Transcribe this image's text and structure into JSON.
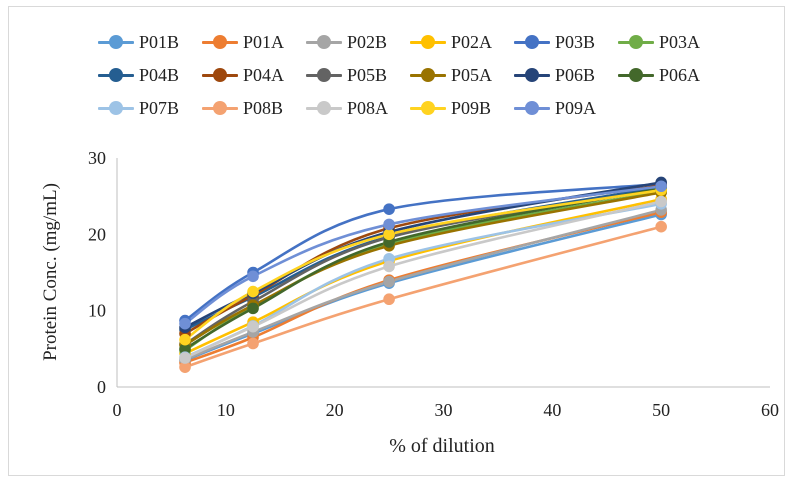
{
  "chart_data": {
    "type": "line",
    "title": "",
    "xlabel": "% of dilution",
    "ylabel": "Protein Conc. (mg/mL)",
    "xlim": [
      0,
      60
    ],
    "ylim": [
      0,
      30
    ],
    "xticks": [
      0,
      10,
      20,
      30,
      40,
      50,
      60
    ],
    "yticks": [
      0,
      10,
      20,
      30
    ],
    "grid": false,
    "legend_position": "top",
    "line_style": "smooth",
    "x": [
      6.25,
      12.5,
      25,
      50
    ],
    "series": [
      {
        "name": "P01B",
        "color": "#5b9bd5",
        "values": [
          3.5,
          7.0,
          13.6,
          22.6
        ]
      },
      {
        "name": "P01A",
        "color": "#ed7d31",
        "values": [
          3.2,
          6.5,
          14.0,
          22.9
        ]
      },
      {
        "name": "P02B",
        "color": "#a5a5a5",
        "values": [
          3.6,
          7.2,
          13.8,
          23.2
        ]
      },
      {
        "name": "P02A",
        "color": "#ffc000",
        "values": [
          4.4,
          8.5,
          16.5,
          24.6
        ]
      },
      {
        "name": "P03B",
        "color": "#4472c4",
        "values": [
          8.7,
          15.0,
          23.3,
          26.6
        ]
      },
      {
        "name": "P03A",
        "color": "#70ad47",
        "values": [
          4.8,
          10.5,
          18.8,
          25.6
        ]
      },
      {
        "name": "P04B",
        "color": "#255e91",
        "values": [
          7.5,
          11.8,
          19.7,
          26.2
        ]
      },
      {
        "name": "P04A",
        "color": "#9e480e",
        "values": [
          7.0,
          12.0,
          20.8,
          26.4
        ]
      },
      {
        "name": "P05B",
        "color": "#636363",
        "values": [
          5.6,
          11.2,
          19.6,
          25.9
        ]
      },
      {
        "name": "P05A",
        "color": "#997300",
        "values": [
          5.5,
          10.7,
          18.5,
          25.5
        ]
      },
      {
        "name": "P06B",
        "color": "#264478",
        "values": [
          7.8,
          12.3,
          20.3,
          26.8
        ]
      },
      {
        "name": "P06A",
        "color": "#43682b",
        "values": [
          5.0,
          10.3,
          19.0,
          26.0
        ]
      },
      {
        "name": "P07B",
        "color": "#9dc3e6",
        "values": [
          3.9,
          8.0,
          16.8,
          24.0
        ]
      },
      {
        "name": "P08B",
        "color": "#f4a271",
        "values": [
          2.6,
          5.7,
          11.5,
          21.0
        ]
      },
      {
        "name": "P08A",
        "color": "#c9c9c9",
        "values": [
          3.8,
          7.9,
          15.8,
          24.3
        ]
      },
      {
        "name": "P09B",
        "color": "#ffd320",
        "values": [
          6.2,
          12.5,
          20.0,
          25.8
        ]
      },
      {
        "name": "P09A",
        "color": "#6f8fd6",
        "values": [
          8.3,
          14.5,
          21.3,
          26.3
        ]
      }
    ]
  }
}
